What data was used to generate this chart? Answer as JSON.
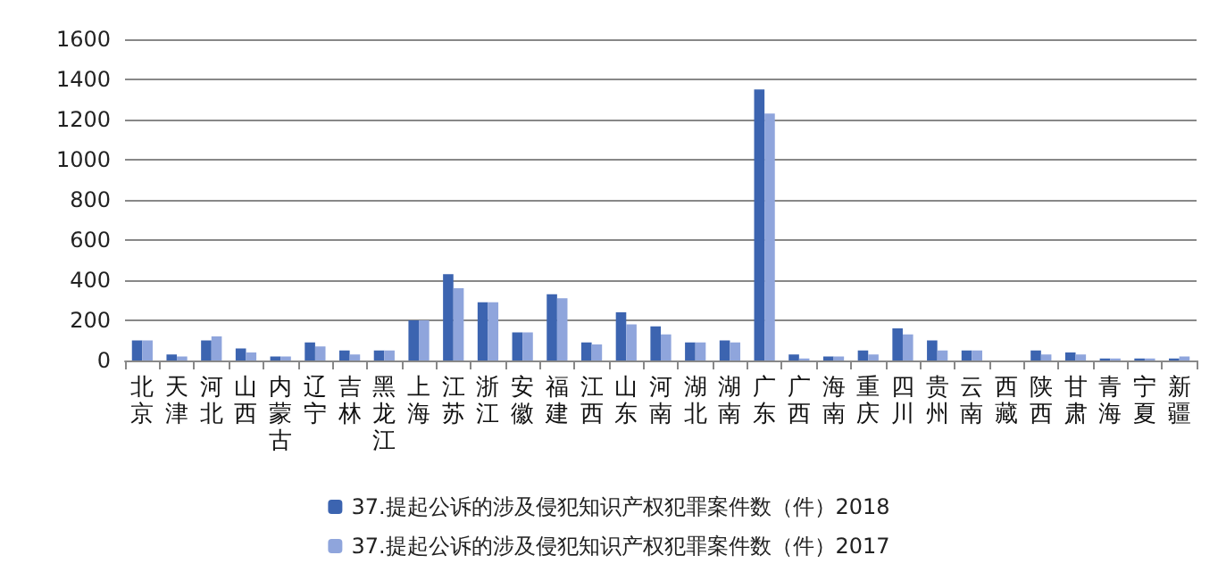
{
  "chart_data": {
    "type": "bar",
    "categories": [
      "北京",
      "天津",
      "河北",
      "山西",
      "内蒙古",
      "辽宁",
      "吉林",
      "黑龙江",
      "上海",
      "江苏",
      "浙江",
      "安徽",
      "福建",
      "江西",
      "山东",
      "河南",
      "湖北",
      "湖南",
      "广东",
      "广西",
      "海南",
      "重庆",
      "四川",
      "贵州",
      "云南",
      "西藏",
      "陕西",
      "甘肃",
      "青海",
      "宁夏",
      "新疆"
    ],
    "series": [
      {
        "name": "37.提起公诉的涉及侵犯知识产权犯罪案件数（件）2018",
        "color": "#3c64b0",
        "values": [
          100,
          30,
          100,
          60,
          20,
          90,
          50,
          50,
          200,
          430,
          290,
          140,
          330,
          90,
          240,
          170,
          90,
          100,
          1350,
          30,
          20,
          50,
          160,
          100,
          50,
          0,
          50,
          40,
          10,
          10,
          10
        ]
      },
      {
        "name": "37.提起公诉的涉及侵犯知识产权犯罪案件数（件）2017",
        "color": "#8fa5dc",
        "values": [
          100,
          20,
          120,
          40,
          20,
          70,
          30,
          50,
          200,
          360,
          290,
          140,
          310,
          80,
          180,
          130,
          90,
          90,
          1230,
          10,
          20,
          30,
          130,
          50,
          50,
          0,
          30,
          30,
          10,
          10,
          20
        ]
      }
    ],
    "ylim": [
      0,
      1600
    ],
    "yticks": [
      0,
      200,
      400,
      600,
      800,
      1000,
      1200,
      1400,
      1600
    ],
    "grid": "y",
    "legend": "bottom"
  }
}
